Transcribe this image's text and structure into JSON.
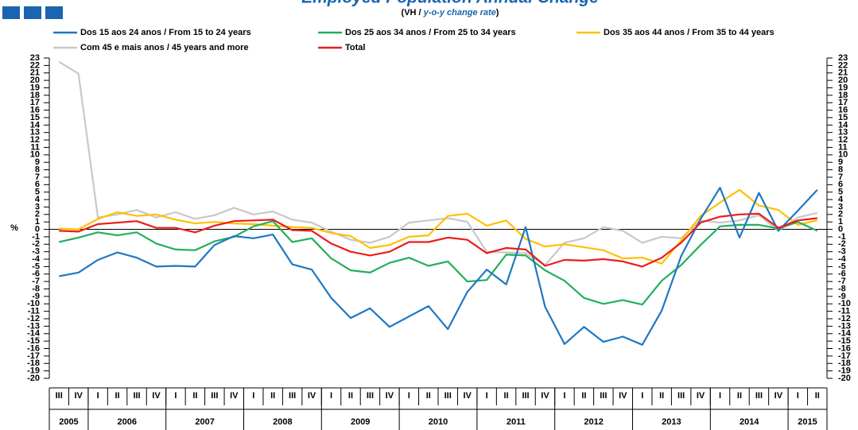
{
  "chart_data": {
    "type": "line",
    "title": "Employed Population Annual Change",
    "subtitle": {
      "prefix": "(VH / ",
      "emphasis": "y-o-y change rate",
      "suffix": ")"
    },
    "y_label": "%",
    "periods": [
      {
        "year": "2005",
        "quarters": [
          "III",
          "IV"
        ]
      },
      {
        "year": "2006",
        "quarters": [
          "I",
          "II",
          "III",
          "IV"
        ]
      },
      {
        "year": "2007",
        "quarters": [
          "I",
          "II",
          "III",
          "IV"
        ]
      },
      {
        "year": "2008",
        "quarters": [
          "I",
          "II",
          "III",
          "IV"
        ]
      },
      {
        "year": "2009",
        "quarters": [
          "I",
          "II",
          "III",
          "IV"
        ]
      },
      {
        "year": "2010",
        "quarters": [
          "I",
          "II",
          "III",
          "IV"
        ]
      },
      {
        "year": "2011",
        "quarters": [
          "I",
          "II",
          "III",
          "IV"
        ]
      },
      {
        "year": "2012",
        "quarters": [
          "I",
          "II",
          "III",
          "IV"
        ]
      },
      {
        "year": "2013",
        "quarters": [
          "I",
          "II",
          "III",
          "IV"
        ]
      },
      {
        "year": "2014",
        "quarters": [
          "I",
          "II",
          "III",
          "IV"
        ]
      },
      {
        "year": "2015",
        "quarters": [
          "I",
          "II"
        ]
      }
    ],
    "series": [
      {
        "name": "Dos 15 aos 24 anos / From 15 to 24 years",
        "color": "#1f77c4",
        "values": [
          -6.3,
          -5.8,
          -4.1,
          -3.1,
          -3.8,
          -5.0,
          -4.9,
          -5.0,
          -2.1,
          -0.9,
          -1.2,
          -0.7,
          -4.7,
          -5.4,
          -9.2,
          -11.9,
          -10.6,
          -13.1,
          -11.7,
          -10.3,
          -13.4,
          -8.4,
          -5.4,
          -7.4,
          0.3,
          -10.4,
          -15.4,
          -13.1,
          -15.1,
          -14.4,
          -15.5,
          -10.9,
          -3.6,
          1.4,
          5.6,
          -1.1,
          4.9,
          -0.2,
          2.5,
          5.3
        ]
      },
      {
        "name": "Dos 25 aos 34 anos / From 25 to 34 years",
        "color": "#21b05a",
        "values": [
          -1.7,
          -1.1,
          -0.4,
          -0.8,
          -0.4,
          -1.9,
          -2.7,
          -2.8,
          -1.6,
          -1.0,
          0.4,
          1.1,
          -1.7,
          -1.2,
          -3.9,
          -5.5,
          -5.8,
          -4.5,
          -3.8,
          -4.9,
          -4.3,
          -7.0,
          -6.8,
          -3.4,
          -3.5,
          -5.5,
          -6.9,
          -9.2,
          -10.0,
          -9.5,
          -10.1,
          -6.9,
          -4.8,
          -2.1,
          0.4,
          0.6,
          0.6,
          0.1,
          1.0,
          -0.2
        ]
      },
      {
        "name": "Dos 35 aos 44 anos / From 35 to 44 years",
        "color": "#ffc000",
        "values": [
          0.1,
          0.0,
          1.4,
          2.3,
          1.8,
          2.0,
          1.3,
          0.8,
          1.0,
          0.8,
          0.7,
          0.5,
          0.3,
          0.2,
          -0.5,
          -0.9,
          -2.5,
          -2.1,
          -1.0,
          -0.8,
          1.8,
          2.1,
          0.5,
          1.2,
          -1.3,
          -2.3,
          -2.0,
          -2.4,
          -2.8,
          -3.9,
          -3.8,
          -4.6,
          -1.5,
          1.8,
          3.6,
          5.3,
          3.2,
          2.6,
          0.6,
          1.2
        ]
      },
      {
        "name": "Com 45 e mais anos / 45 years and more",
        "color": "#c8c8c8",
        "values": [
          22.5,
          20.9,
          1.6,
          2.0,
          2.6,
          1.6,
          2.3,
          1.4,
          1.9,
          2.9,
          2.0,
          2.4,
          1.3,
          0.9,
          -0.3,
          -1.4,
          -1.8,
          -1.0,
          0.9,
          1.2,
          1.5,
          1.0,
          -3.0,
          -3.1,
          -3.2,
          -4.8,
          -1.8,
          -1.2,
          0.3,
          -0.2,
          -1.8,
          -1.0,
          -1.2,
          1.2,
          0.9,
          1.2,
          1.9,
          -0.2,
          1.6,
          2.2
        ]
      },
      {
        "name": "Total",
        "color": "#ee1c1c",
        "values": [
          -0.2,
          -0.3,
          0.7,
          0.9,
          1.1,
          0.2,
          0.2,
          -0.4,
          0.5,
          1.1,
          1.2,
          1.3,
          -0.1,
          -0.2,
          -1.9,
          -3.0,
          -3.5,
          -3.0,
          -1.7,
          -1.7,
          -1.1,
          -1.4,
          -3.2,
          -2.5,
          -2.7,
          -4.9,
          -4.1,
          -4.2,
          -4.0,
          -4.3,
          -5.0,
          -3.8,
          -1.8,
          0.9,
          1.7,
          2.0,
          2.1,
          0.2,
          1.2,
          1.5
        ]
      }
    ],
    "ylim": [
      -20,
      23
    ],
    "yticks": [
      -20,
      -19,
      -18,
      -17,
      -16,
      -15,
      -14,
      -13,
      -12,
      -11,
      -10,
      -9,
      -8,
      -7,
      -6,
      -5,
      -4,
      -3,
      -2,
      -1,
      0,
      1,
      2,
      3,
      4,
      5,
      6,
      7,
      8,
      9,
      10,
      11,
      12,
      13,
      14,
      15,
      16,
      17,
      18,
      19,
      20,
      21,
      22,
      23
    ]
  }
}
